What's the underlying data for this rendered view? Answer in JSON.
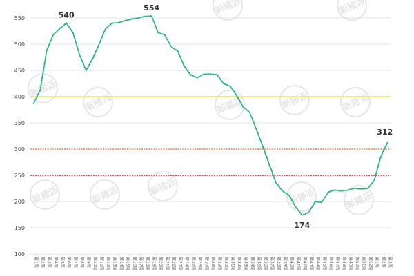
{
  "chart_data": {
    "type": "line",
    "x": [
      "第1周",
      "第2周",
      "第3周",
      "第4周",
      "第5周",
      "第6周",
      "第7周",
      "第8周",
      "第9周",
      "第10周",
      "第11周",
      "第12周",
      "第13周",
      "第14周",
      "第15周",
      "第16周",
      "第17周",
      "第18周",
      "第19周",
      "第20周",
      "第21周",
      "第22周",
      "第23周",
      "第24周",
      "第25周",
      "第26周",
      "第27周",
      "第28周",
      "第29周",
      "第30周",
      "第31周",
      "第32周",
      "第33周",
      "第34周",
      "第35周",
      "第36周",
      "第37周",
      "第38周",
      "第39周",
      "第40周",
      "第41周",
      "第42周",
      "第43周",
      "第44周",
      "第45周",
      "第46周",
      "第47周",
      "第48周",
      "第49周",
      "第50周",
      "第51周",
      "第52周",
      "第1周",
      "第2周",
      "第3周"
    ],
    "series": [
      {
        "values": [
          387,
          412,
          488,
          518,
          530,
          540,
          522,
          480,
          450,
          472,
          500,
          530,
          540,
          541,
          545,
          548,
          550,
          553,
          554,
          522,
          518,
          495,
          487,
          458,
          441,
          436,
          443,
          443,
          442,
          425,
          420,
          402,
          380,
          370,
          338,
          305,
          270,
          236,
          220,
          212,
          190,
          174,
          179,
          200,
          198,
          218,
          222,
          220,
          222,
          225,
          224,
          225,
          240,
          285,
          312
        ]
      }
    ],
    "reference_lines": [
      {
        "value": 400,
        "color": "#f2e14c"
      },
      {
        "value": 300,
        "color": "#e8875a"
      },
      {
        "value": 250,
        "color": "#e0202a"
      }
    ],
    "data_labels": [
      {
        "index": 5,
        "text": "540"
      },
      {
        "index": 18,
        "text": "554"
      },
      {
        "index": 41,
        "text": "174"
      },
      {
        "index": 54,
        "text": "312"
      }
    ],
    "ylim": [
      100,
      550
    ],
    "yticks": [
      100,
      150,
      200,
      250,
      300,
      350,
      400,
      450,
      500,
      550
    ],
    "grid": true,
    "line_color": "#2bb38a",
    "watermark": "新猪派"
  }
}
